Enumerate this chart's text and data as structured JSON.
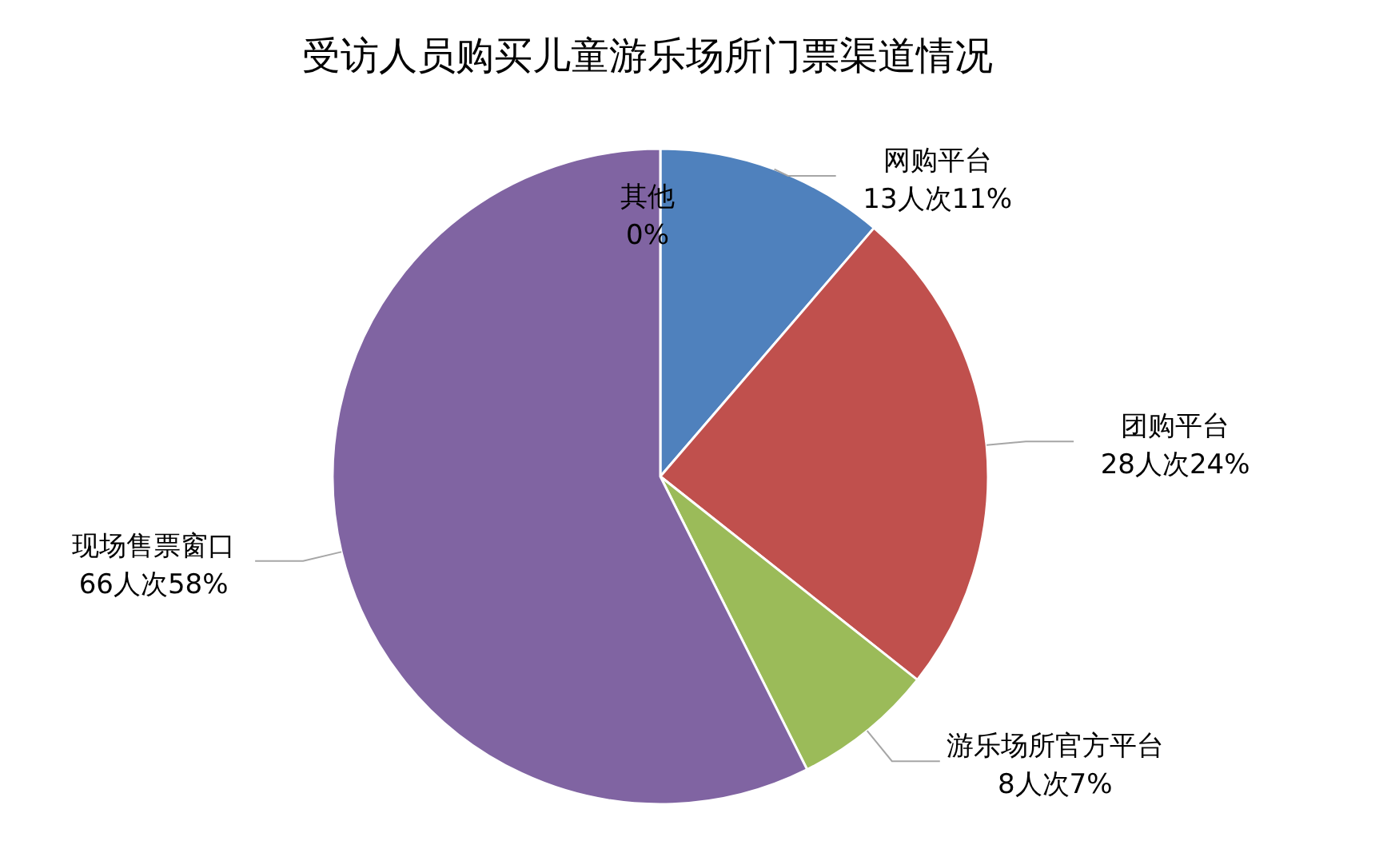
{
  "chart_data": {
    "type": "pie",
    "title": "受访人员购买儿童游乐场所门票渠道情况",
    "categories": [
      "其他",
      "网购平台",
      "团购平台",
      "游乐场所官方平台",
      "现场售票窗口"
    ],
    "values": [
      0,
      13,
      28,
      8,
      66
    ],
    "value_labels": [
      "0%",
      "13人次11%",
      "28人次24%",
      "8人次7%",
      "66人次58%"
    ],
    "colors": [
      "#4bacc6",
      "#4f81bd",
      "#c0504d",
      "#9bbb59",
      "#8064a2"
    ]
  }
}
